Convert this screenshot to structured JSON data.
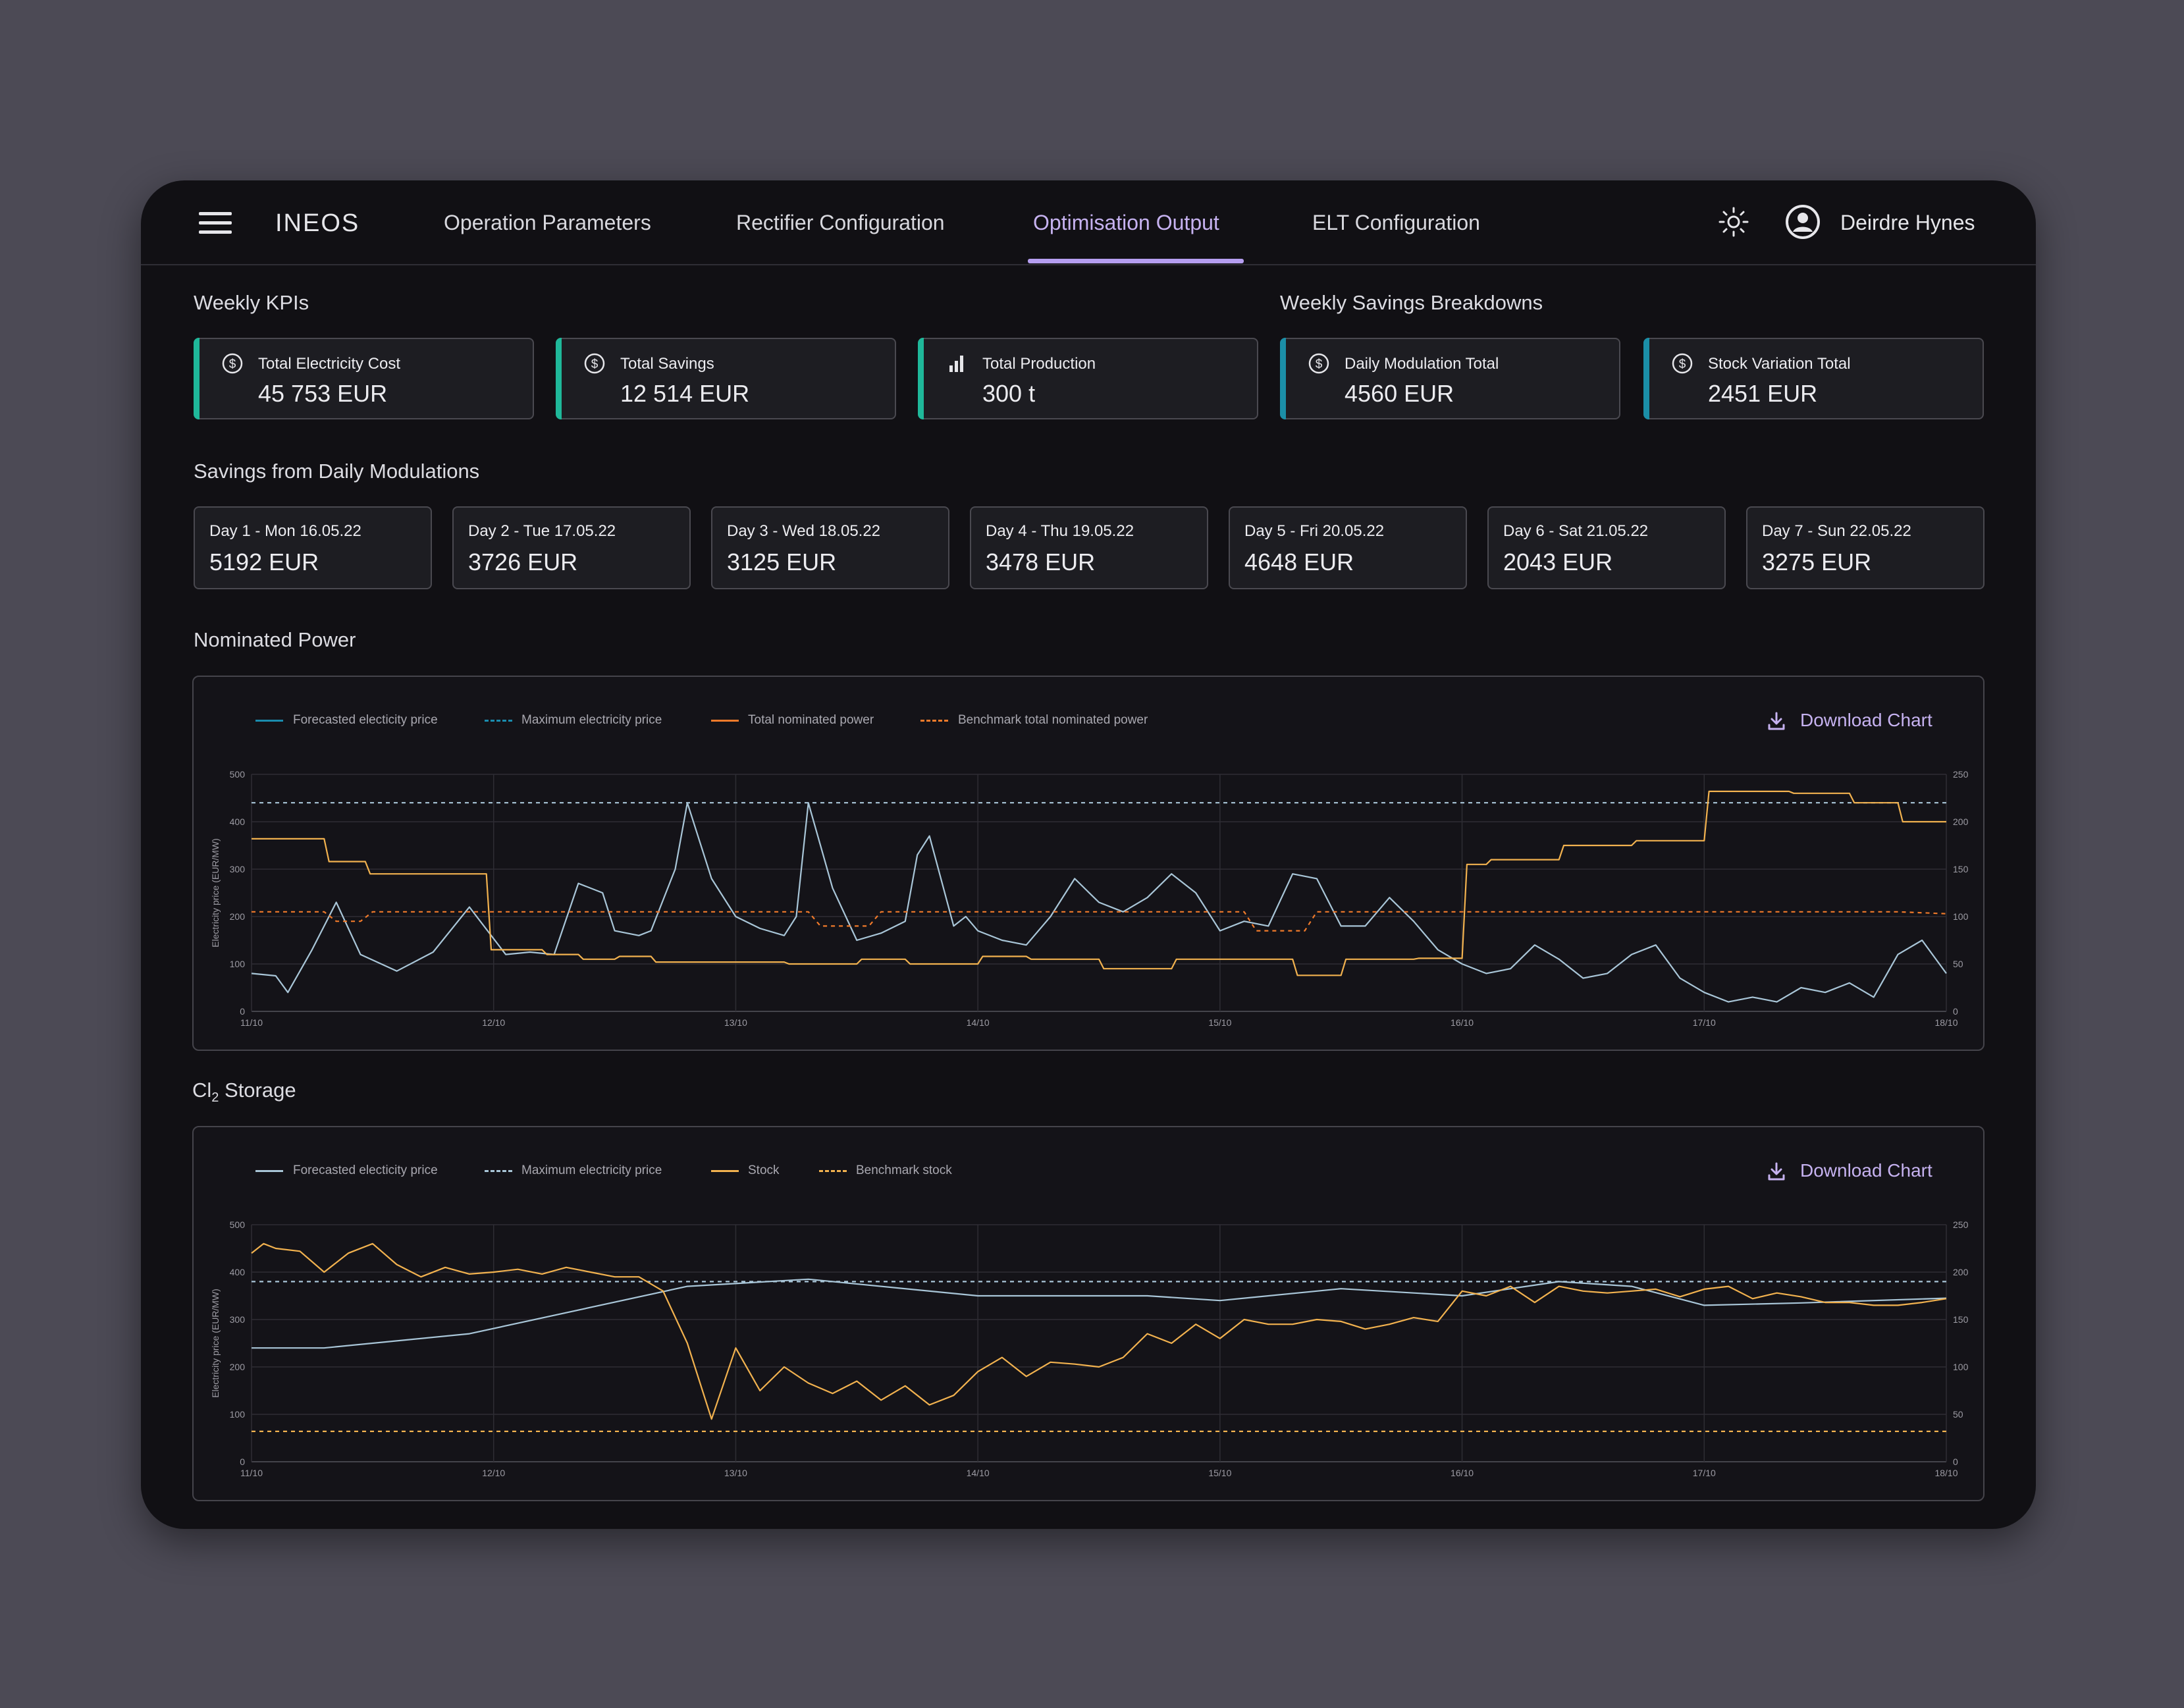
{
  "app": {
    "logo": "INEOS",
    "user_name": "Deirdre Hynes"
  },
  "nav": {
    "items": [
      {
        "label": "Operation Parameters",
        "active": false
      },
      {
        "label": "Rectifier Configuration",
        "active": false
      },
      {
        "label": "Optimisation Output",
        "active": true
      },
      {
        "label": "ELT Configuration",
        "active": false
      }
    ]
  },
  "sections": {
    "weekly_kpis": "Weekly KPIs",
    "weekly_savings": "Weekly Savings Breakdowns",
    "daily_modulations": "Savings from Daily Modulations",
    "nominated_power": "Nominated Power",
    "cl2_storage_prefix": "Cl",
    "cl2_storage_sub": "2",
    "cl2_storage_suffix": " Storage"
  },
  "kpis": [
    {
      "label": "Total Electricity Cost",
      "value": "45 753 EUR",
      "icon": "dollar-circle-icon",
      "accent": "#1fb89a"
    },
    {
      "label": "Total Savings",
      "value": "12 514 EUR",
      "icon": "dollar-circle-icon",
      "accent": "#1fb89a"
    },
    {
      "label": "Total Production",
      "value": "300 t",
      "icon": "bar-chart-icon",
      "accent": "#1fb89a"
    },
    {
      "label": "Daily Modulation Total",
      "value": "4560 EUR",
      "icon": "dollar-circle-icon",
      "accent": "#1b8fa8"
    },
    {
      "label": "Stock Variation Total",
      "value": "2451 EUR",
      "icon": "dollar-circle-icon",
      "accent": "#1b8fa8"
    }
  ],
  "days": [
    {
      "label": "Day 1 - Mon 16.05.22",
      "value": "5192 EUR"
    },
    {
      "label": "Day 2 - Tue 17.05.22",
      "value": "3726 EUR"
    },
    {
      "label": "Day 3 - Wed 18.05.22",
      "value": "3125 EUR"
    },
    {
      "label": "Day 4 - Thu 19.05.22",
      "value": "3478 EUR"
    },
    {
      "label": "Day 5 - Fri 20.05.22",
      "value": "4648 EUR"
    },
    {
      "label": "Day 6 - Sat 21.05.22",
      "value": "2043 EUR"
    },
    {
      "label": "Day 7 - Sun 22.05.22",
      "value": "3275 EUR"
    }
  ],
  "download_label": "Download Chart",
  "colors": {
    "price": "#a9c6d8",
    "price_dark": "#1a8cae",
    "orange": "#f2b24f",
    "orange_deep": "#f07a2a",
    "accent": "#c6b2f0"
  },
  "chart_data": [
    {
      "type": "line",
      "ylabel": "Electricity price (EUR/MW)",
      "x_ticks": [
        "11/10",
        "12/10",
        "13/10",
        "14/10",
        "15/10",
        "16/10",
        "17/10",
        "18/10"
      ],
      "ylim": [
        0,
        500
      ],
      "y_ticks": [
        0,
        100,
        200,
        300,
        400,
        500
      ],
      "y2lim": [
        0,
        250
      ],
      "y2_ticks": [
        0,
        50,
        100,
        150,
        200,
        250
      ],
      "grid": true,
      "legend_position": "top-left",
      "series": [
        {
          "name": "Forecasted electicity price",
          "axis": "left",
          "style": "solid",
          "color": "#a9c6d8",
          "legend_color": "#1a8cae",
          "x": [
            0,
            0.1,
            0.15,
            0.25,
            0.35,
            0.45,
            0.6,
            0.75,
            0.9,
            1.05,
            1.15,
            1.25,
            1.35,
            1.45,
            1.5,
            1.6,
            1.65,
            1.75,
            1.8,
            1.9,
            2.0,
            2.1,
            2.2,
            2.25,
            2.3,
            2.4,
            2.5,
            2.6,
            2.7,
            2.75,
            2.8,
            2.9,
            2.95,
            3.0,
            3.1,
            3.2,
            3.3,
            3.4,
            3.5,
            3.6,
            3.7,
            3.8,
            3.9,
            4.0,
            4.1,
            4.2,
            4.3,
            4.4,
            4.5,
            4.6,
            4.7,
            4.8,
            4.9,
            5.0,
            5.1,
            5.2,
            5.3,
            5.4,
            5.5,
            5.6,
            5.7,
            5.8,
            5.9,
            6.0,
            6.1,
            6.2,
            6.3,
            6.4,
            6.5,
            6.6,
            6.7,
            6.8,
            6.9,
            7.0
          ],
          "y": [
            80,
            75,
            40,
            130,
            230,
            120,
            85,
            125,
            220,
            120,
            125,
            120,
            270,
            250,
            170,
            160,
            170,
            300,
            440,
            280,
            200,
            175,
            160,
            200,
            440,
            260,
            150,
            165,
            190,
            330,
            370,
            180,
            200,
            170,
            150,
            140,
            200,
            280,
            230,
            210,
            240,
            290,
            250,
            170,
            190,
            180,
            290,
            280,
            180,
            180,
            240,
            190,
            130,
            100,
            80,
            90,
            140,
            110,
            70,
            80,
            120,
            140,
            70,
            40,
            20,
            30,
            20,
            50,
            40,
            60,
            30,
            120,
            150,
            80
          ]
        },
        {
          "name": "Maximum electricity price",
          "axis": "left",
          "style": "dashed",
          "color": "#a9c6d8",
          "legend_color": "#1a8cae",
          "x": [
            0,
            7.0
          ],
          "y": [
            440,
            440
          ]
        },
        {
          "name": "Total nominated power",
          "axis": "right",
          "style": "solid",
          "color": "#f2b24f",
          "legend_color": "#f07a2a",
          "x": [
            0,
            0.3,
            0.32,
            0.47,
            0.49,
            0.97,
            0.99,
            1.2,
            1.22,
            1.35,
            1.37,
            1.5,
            1.52,
            1.65,
            1.67,
            2.2,
            2.22,
            2.5,
            2.52,
            2.7,
            2.72,
            3.0,
            3.02,
            3.2,
            3.22,
            3.5,
            3.52,
            3.8,
            3.82,
            4.3,
            4.32,
            4.5,
            4.52,
            4.8,
            4.82,
            5.0,
            5.02,
            5.1,
            5.12,
            5.4,
            5.42,
            5.7,
            5.72,
            6.0,
            6.02,
            6.35,
            6.37,
            6.6,
            6.62,
            6.8,
            6.82,
            7.0
          ],
          "y": [
            182,
            182,
            158,
            158,
            145,
            145,
            65,
            65,
            60,
            60,
            55,
            55,
            58,
            58,
            52,
            52,
            50,
            50,
            55,
            55,
            50,
            50,
            58,
            58,
            55,
            55,
            45,
            45,
            55,
            55,
            38,
            38,
            55,
            55,
            56,
            56,
            155,
            155,
            160,
            160,
            175,
            175,
            180,
            180,
            232,
            232,
            230,
            230,
            220,
            220,
            200,
            200
          ]
        },
        {
          "name": "Benchmark total nominated power",
          "axis": "right",
          "style": "dashed",
          "color": "#f07a2a",
          "legend_color": "#f07a2a",
          "x": [
            0,
            0.3,
            0.35,
            0.45,
            0.5,
            2.3,
            2.35,
            2.55,
            2.6,
            4.1,
            4.15,
            4.35,
            4.4,
            6.8,
            7.0
          ],
          "y": [
            105,
            105,
            95,
            95,
            105,
            105,
            90,
            90,
            105,
            105,
            85,
            85,
            105,
            105,
            103
          ]
        }
      ]
    },
    {
      "type": "line",
      "ylabel": "Electricity price (EUR/MW)",
      "x_ticks": [
        "11/10",
        "12/10",
        "13/10",
        "14/10",
        "15/10",
        "16/10",
        "17/10",
        "18/10"
      ],
      "ylim": [
        0,
        500
      ],
      "y_ticks": [
        0,
        100,
        200,
        300,
        400,
        500
      ],
      "y2lim": [
        0,
        250
      ],
      "y2_ticks": [
        0,
        50,
        100,
        150,
        200,
        250
      ],
      "grid": true,
      "legend_position": "top-left",
      "series": [
        {
          "name": "Forecasted electicity price",
          "axis": "left",
          "style": "solid",
          "color": "#a9c6d8",
          "legend_color": "#a9c6d8",
          "x": [
            0,
            0.3,
            0.9,
            1.8,
            2.3,
            3.0,
            3.7,
            4.0,
            4.5,
            5.0,
            5.4,
            5.7,
            6.0,
            6.4,
            7.0
          ],
          "y": [
            240,
            240,
            270,
            370,
            385,
            350,
            350,
            340,
            365,
            350,
            380,
            370,
            330,
            335,
            345
          ]
        },
        {
          "name": "Maximum electricity price",
          "axis": "left",
          "style": "dashed",
          "color": "#a9c6d8",
          "legend_color": "#a9c6d8",
          "x": [
            0,
            7.0
          ],
          "y": [
            380,
            380
          ]
        },
        {
          "name": "Stock",
          "axis": "right",
          "style": "solid",
          "color": "#f2b24f",
          "legend_color": "#f2b24f",
          "x": [
            0,
            0.05,
            0.1,
            0.2,
            0.3,
            0.4,
            0.5,
            0.6,
            0.7,
            0.8,
            0.9,
            1.0,
            1.1,
            1.2,
            1.3,
            1.4,
            1.5,
            1.6,
            1.7,
            1.8,
            1.9,
            2.0,
            2.1,
            2.2,
            2.3,
            2.4,
            2.5,
            2.6,
            2.7,
            2.8,
            2.9,
            3.0,
            3.1,
            3.2,
            3.3,
            3.4,
            3.5,
            3.6,
            3.7,
            3.8,
            3.9,
            4.0,
            4.1,
            4.2,
            4.3,
            4.4,
            4.5,
            4.6,
            4.7,
            4.8,
            4.9,
            5.0,
            5.1,
            5.2,
            5.3,
            5.4,
            5.5,
            5.6,
            5.7,
            5.8,
            5.9,
            6.0,
            6.1,
            6.2,
            6.3,
            6.4,
            6.5,
            6.6,
            6.7,
            6.8,
            6.9,
            7.0
          ],
          "y": [
            220,
            230,
            225,
            222,
            200,
            220,
            230,
            208,
            195,
            205,
            198,
            200,
            203,
            198,
            205,
            200,
            195,
            195,
            180,
            125,
            45,
            120,
            75,
            100,
            83,
            72,
            85,
            65,
            80,
            60,
            70,
            95,
            110,
            90,
            105,
            103,
            100,
            110,
            135,
            125,
            145,
            130,
            150,
            145,
            145,
            150,
            148,
            140,
            145,
            152,
            148,
            180,
            175,
            185,
            168,
            185,
            180,
            178,
            180,
            182,
            174,
            182,
            185,
            172,
            178,
            174,
            168,
            168,
            165,
            165,
            168,
            172
          ]
        },
        {
          "name": "Benchmark stock",
          "axis": "right",
          "style": "dashed",
          "color": "#f2b24f",
          "legend_color": "#f2b24f",
          "x": [
            0,
            7.0
          ],
          "y": [
            32,
            32
          ]
        }
      ]
    }
  ]
}
